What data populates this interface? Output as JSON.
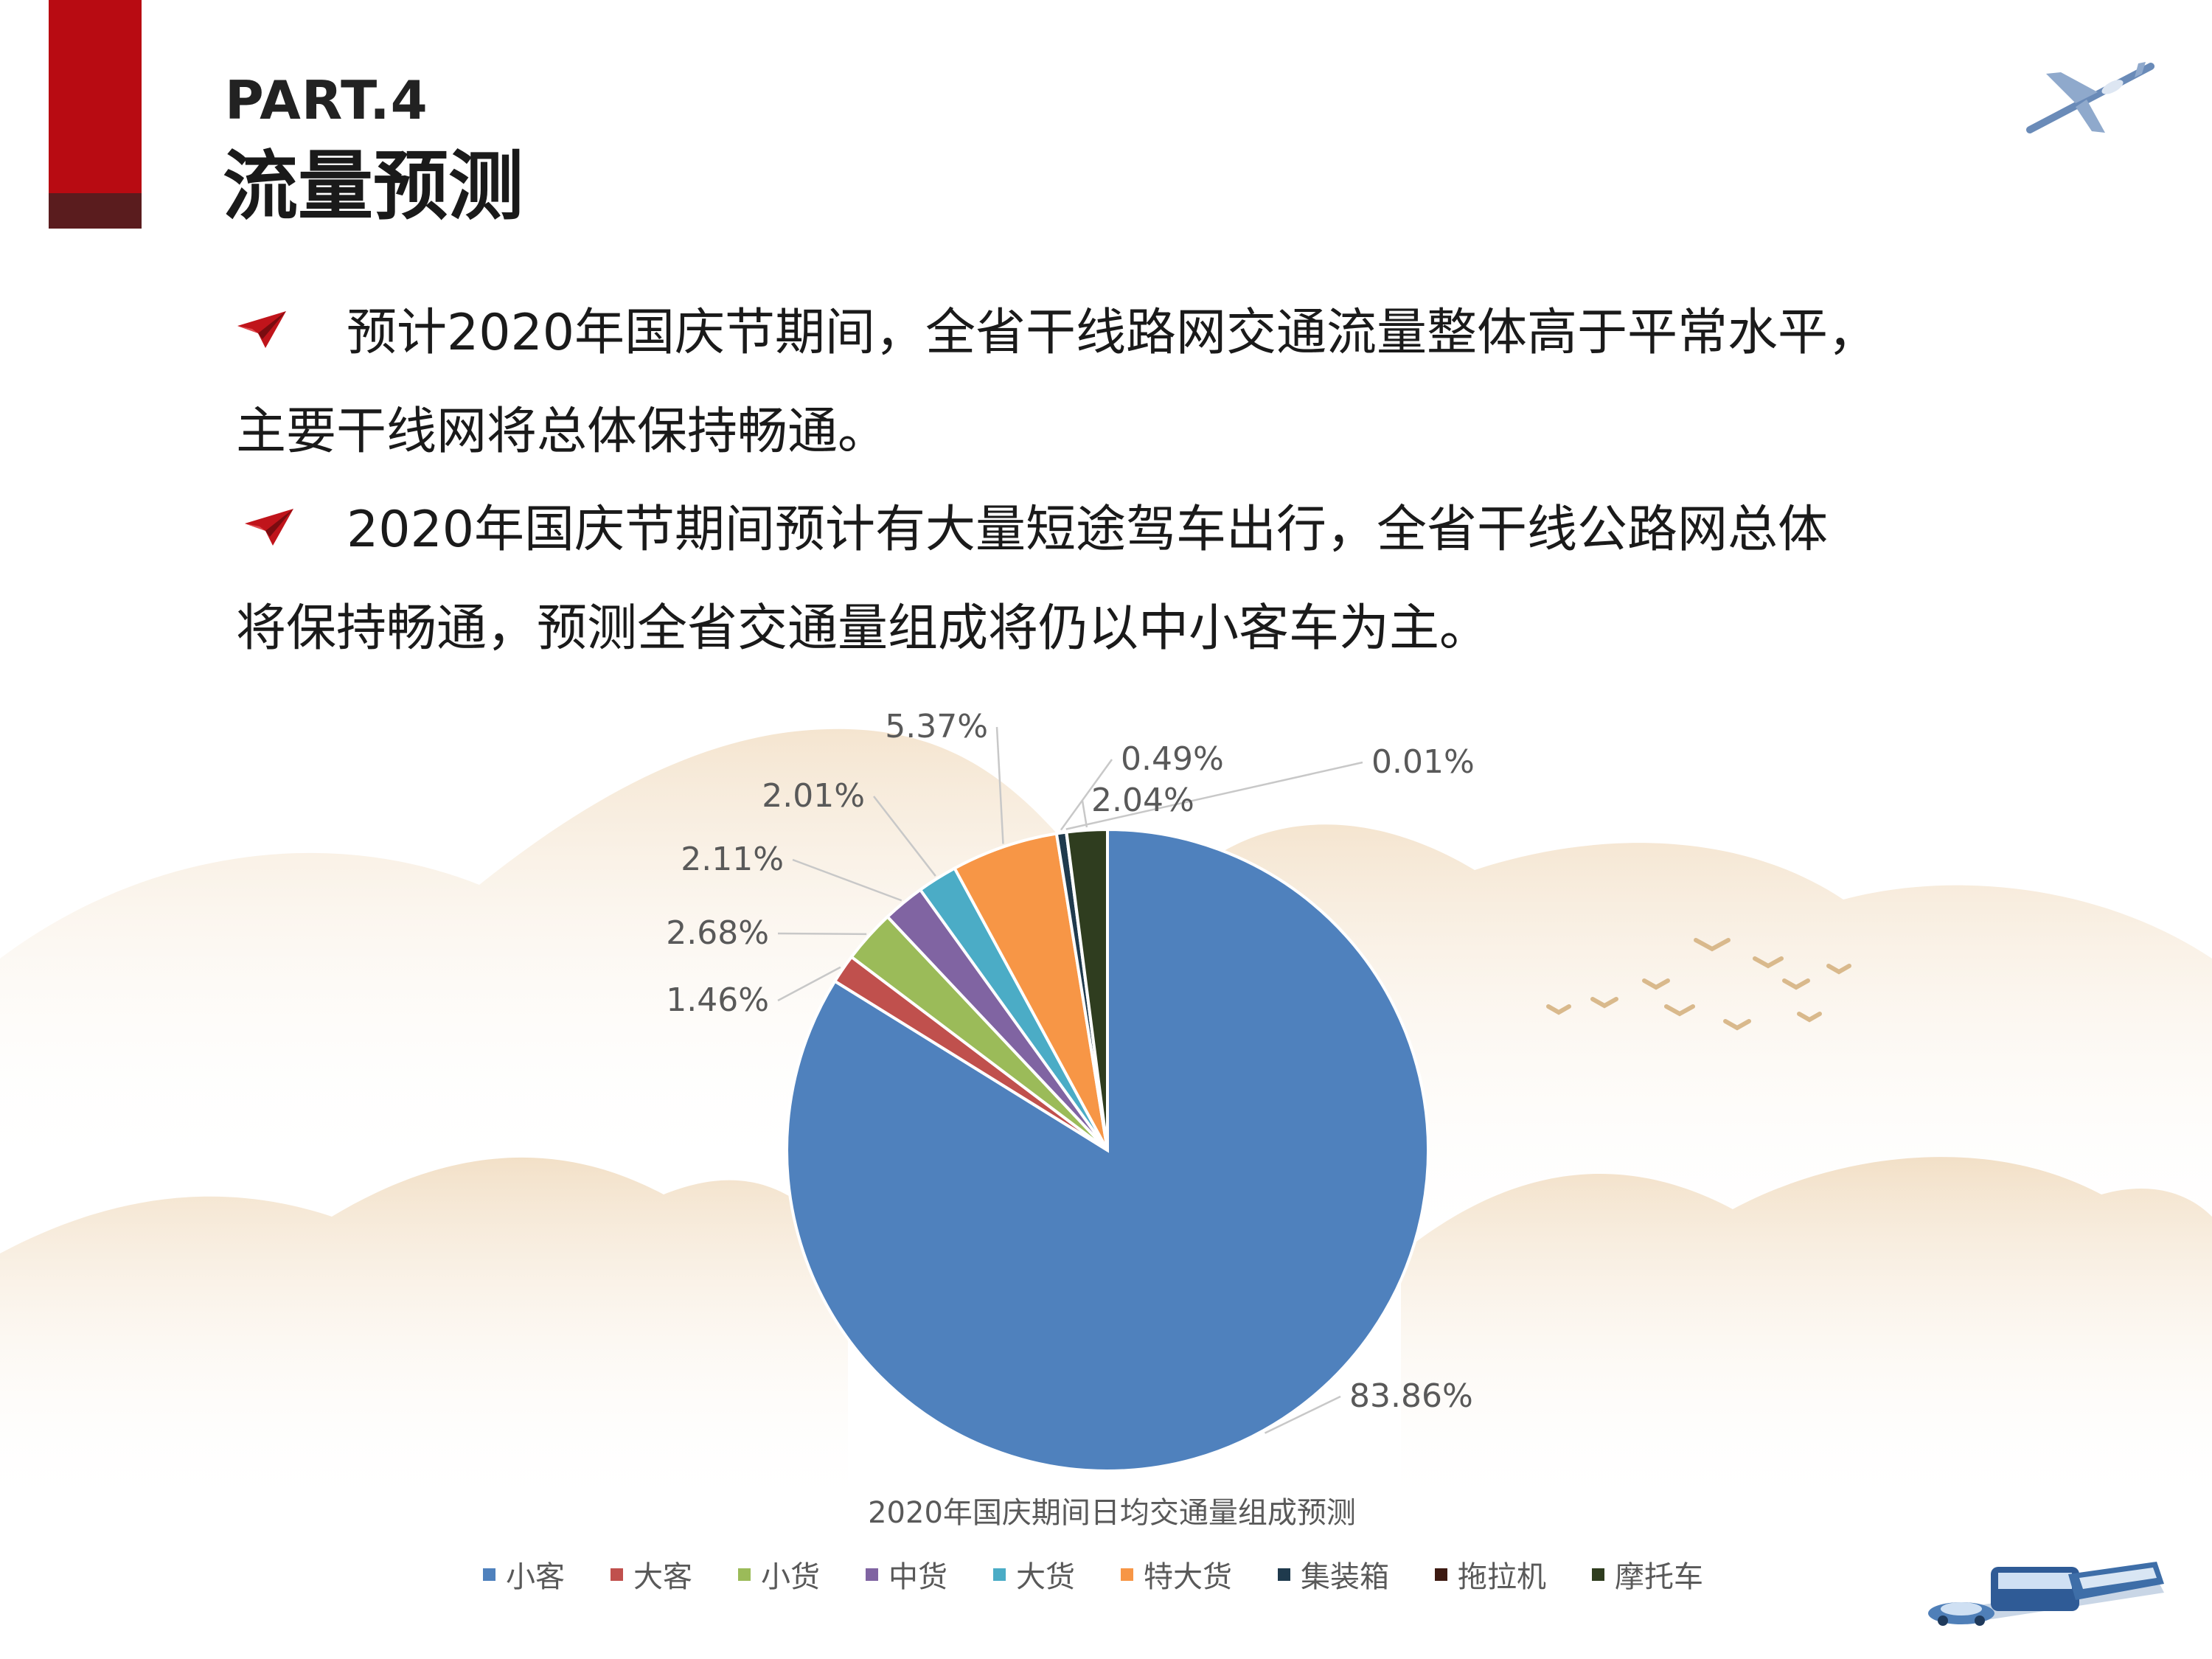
{
  "header": {
    "part_label": "PART.4",
    "section_title": "流量预测"
  },
  "paragraphs": [
    {
      "line1": "预计2020年国庆节期间，全省干线路网交通流量整体高于平常水平，",
      "line2": "主要干线网将总体保持畅通。"
    },
    {
      "line1": "2020年国庆节期间预计有大量短途驾车出行，全省干线公路网总体",
      "line2": "将保持畅通，预测全省交通量组成将仍以中小客车为主。"
    }
  ],
  "colors": {
    "accent_red": "#b80b12",
    "accent_dark": "#5a1c1e",
    "leader_line": "#c8c8c8"
  },
  "chart_data": {
    "type": "pie",
    "title": "2020年国庆期间日均交通量组成预测",
    "start_angle_deg": 0,
    "direction": "clockwise",
    "legend_position": "bottom",
    "categories": [
      "小客",
      "大客",
      "小货",
      "中货",
      "大货",
      "特大货",
      "集装箱",
      "拖拉机",
      "摩托车"
    ],
    "values": [
      83.86,
      1.46,
      2.68,
      2.11,
      2.01,
      5.37,
      0.49,
      0.01,
      2.04
    ],
    "labels": [
      "83.86%",
      "1.46%",
      "2.68%",
      "2.11%",
      "2.01%",
      "5.37%",
      "0.49%",
      "0.01%",
      "2.04%"
    ],
    "colors": [
      "#4f81bd",
      "#c0504d",
      "#9bbb59",
      "#8064a2",
      "#4bacc6",
      "#f79646",
      "#1f3a4d",
      "#3d1a12",
      "#2f3d1f"
    ]
  },
  "icons": {
    "bullet": "paper-plane-icon",
    "top_right": "airplane-icon",
    "bottom_right": "transport-vehicles-icon"
  }
}
